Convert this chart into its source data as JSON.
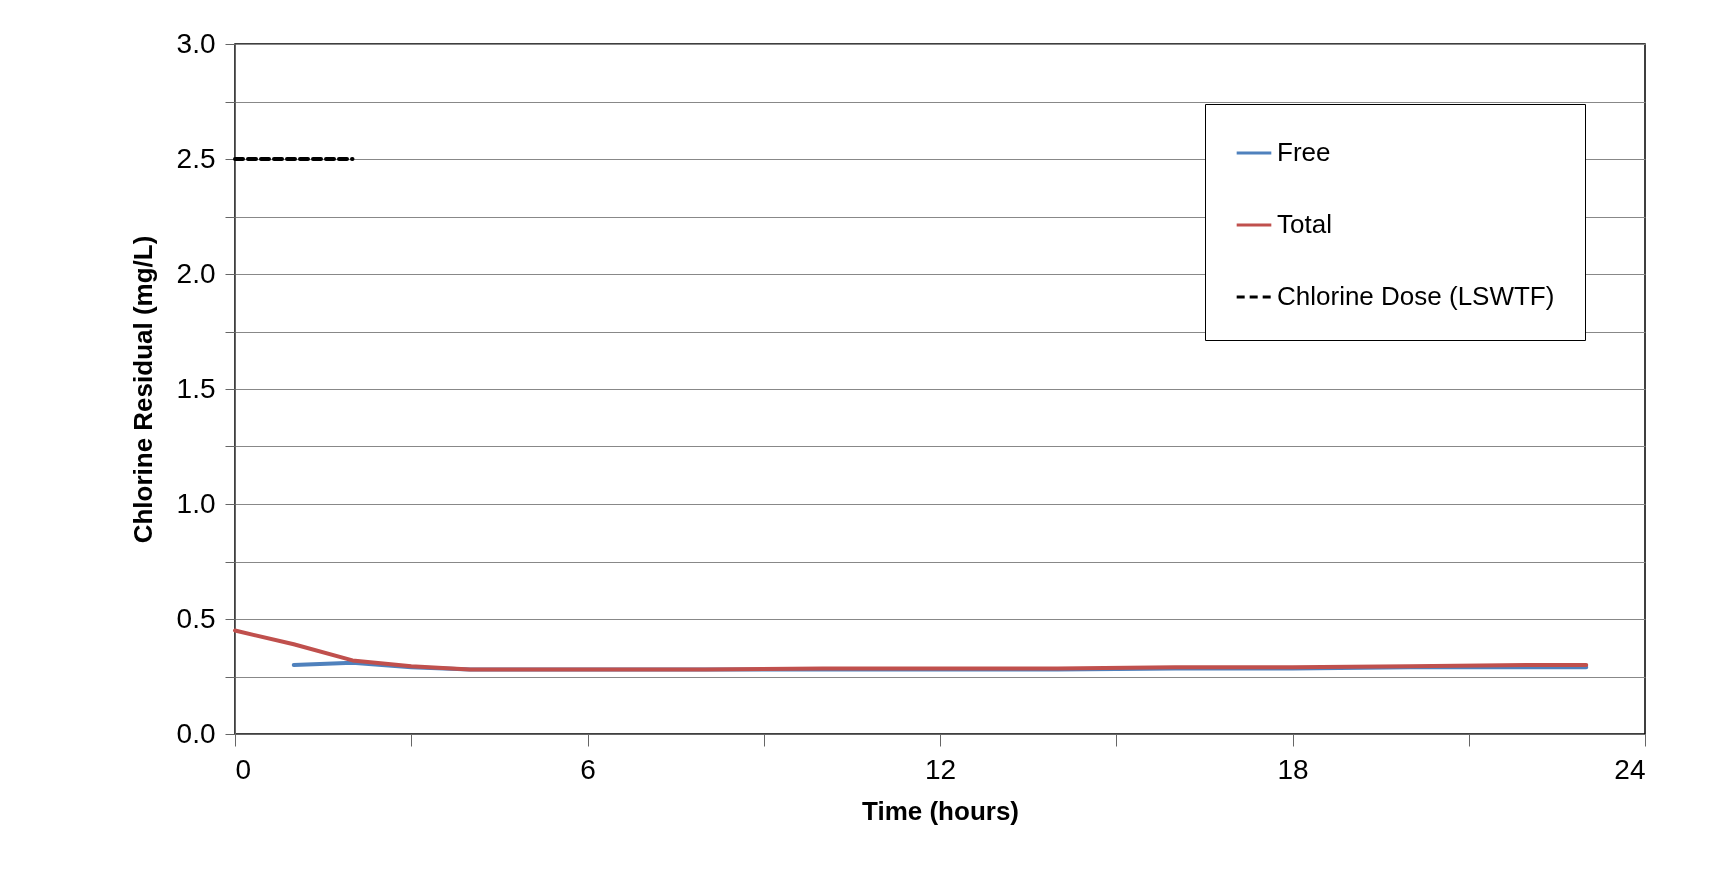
{
  "chart_data": {
    "type": "line",
    "xlabel": "Time (hours)",
    "ylabel": "Chlorine Residual (mg/L)",
    "xlim": [
      0,
      24
    ],
    "xticks": [
      0,
      {
        "value": 3,
        "label": null
      },
      6,
      {
        "value": 9,
        "label": null
      },
      12,
      {
        "value": 15,
        "label": null
      },
      18,
      {
        "value": 21,
        "label": null
      },
      24
    ],
    "ylim": [
      0,
      3
    ],
    "yticks": [
      "0.0",
      {
        "value": 0.25,
        "label": null
      },
      0.5,
      {
        "value": 0.75,
        "label": null
      },
      "1.0",
      {
        "value": 1.25,
        "label": null
      },
      1.5,
      {
        "value": 1.75,
        "label": null
      },
      "2.0",
      {
        "value": 2.25,
        "label": null
      },
      2.5,
      {
        "value": 2.75,
        "label": null
      },
      "3.0"
    ],
    "grid": "y",
    "legend": "top right",
    "marker": "none",
    "series": [
      {
        "name": "Free",
        "color": "#4f81bd",
        "line_style": "solid",
        "x": [
          1,
          2,
          3,
          4,
          6,
          8,
          10,
          12,
          14,
          16,
          18,
          20,
          22,
          23
        ],
        "values": [
          0.3,
          0.31,
          0.29,
          0.28,
          0.28,
          0.28,
          0.28,
          0.28,
          0.28,
          0.285,
          0.285,
          0.29,
          0.29,
          0.29
        ]
      },
      {
        "name": "Total",
        "color": "#c0504d",
        "line_style": "solid",
        "x": [
          0,
          1,
          2,
          3,
          4,
          6,
          8,
          10,
          12,
          14,
          16,
          18,
          20,
          22,
          23
        ],
        "values": [
          0.45,
          0.39,
          0.32,
          0.295,
          0.28,
          0.28,
          0.28,
          0.285,
          0.285,
          0.285,
          0.29,
          0.29,
          0.295,
          0.3,
          0.3
        ]
      },
      {
        "name": "Chlorine Dose (LSWTF)",
        "color": "#000000",
        "line_style": "dashed",
        "x": [
          0,
          2
        ],
        "values": [
          2.5,
          2.5
        ]
      }
    ]
  }
}
